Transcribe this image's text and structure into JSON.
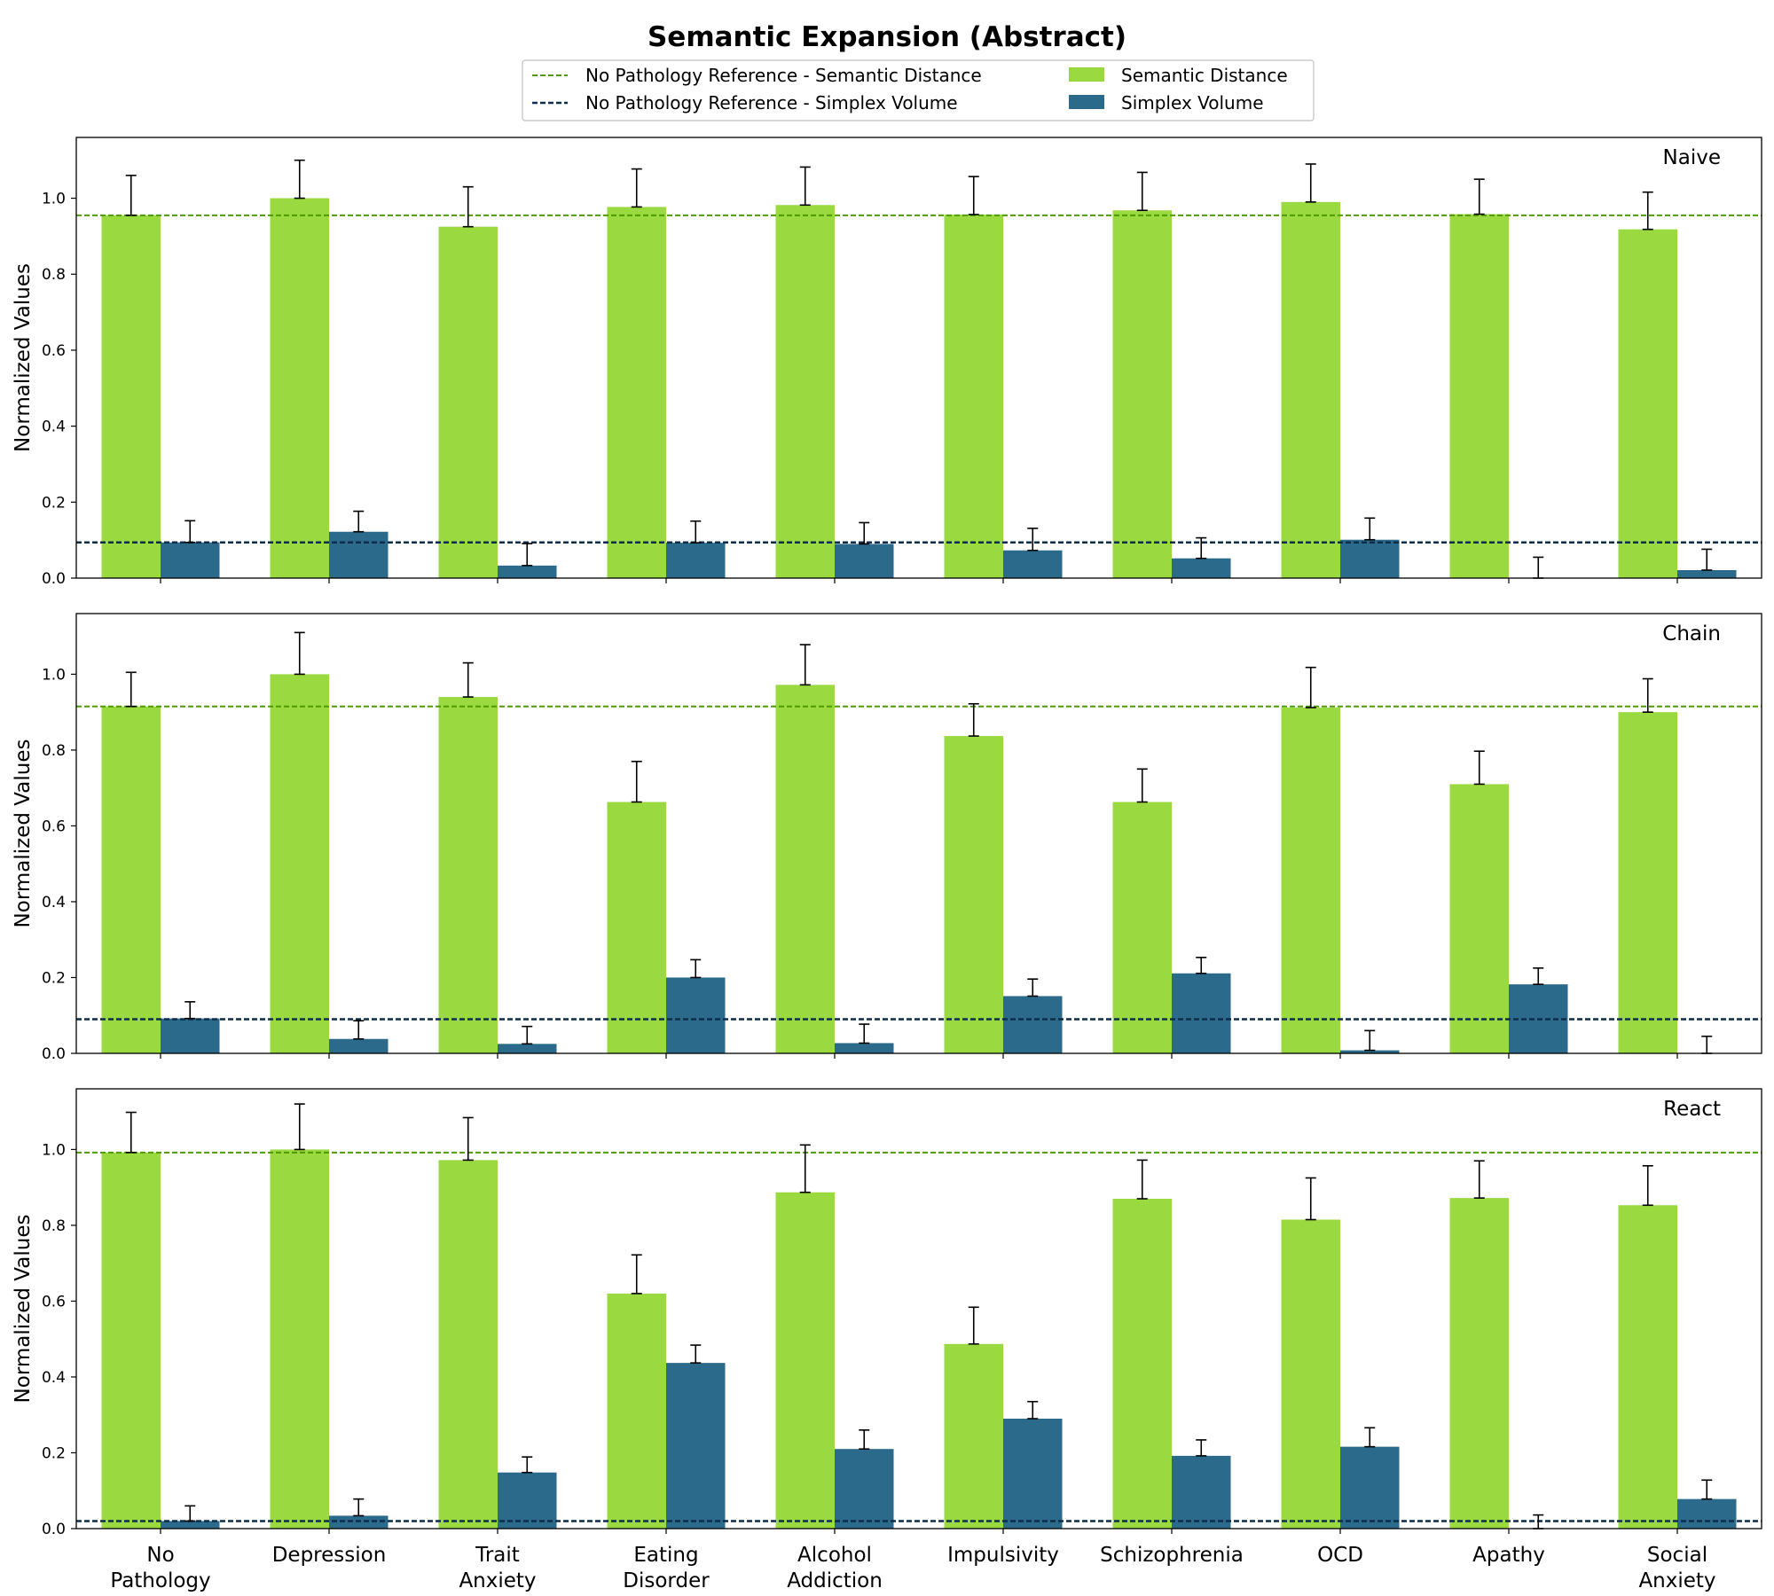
{
  "chart_data": {
    "type": "bar",
    "title": "Semantic Expansion (Abstract)",
    "ylabel": "Normalized Values",
    "ylim": [
      0,
      1.16
    ],
    "yticks": [
      "0.0",
      "0.2",
      "0.4",
      "0.6",
      "0.8",
      "1.0"
    ],
    "categories": [
      "No\nPathology",
      "Depression",
      "Trait\nAnxiety",
      "Eating\nDisorder",
      "Alcohol\nAddiction",
      "Impulsivity",
      "Schizophrenia",
      "OCD",
      "Apathy",
      "Social\nAnxiety"
    ],
    "legend": {
      "placement": "top-center",
      "items": [
        {
          "label": "No Pathology Reference - Semantic Distance",
          "kind": "dashed-line",
          "color": "#4f9a00"
        },
        {
          "label": "No Pathology Reference - Simplex Volume",
          "kind": "dashed-line",
          "color": "#0d2d4a"
        },
        {
          "label": "Semantic Distance",
          "kind": "bar",
          "color": "#9ad940"
        },
        {
          "label": "Simplex Volume",
          "kind": "bar",
          "color": "#2b6a8a"
        }
      ]
    },
    "colors": {
      "semantic": "#9ad940",
      "simplex": "#2b6a8a",
      "ref_semantic": "#4f9a00",
      "ref_simplex": "#0d2d4a"
    },
    "panels": [
      {
        "name": "Naive",
        "series": [
          {
            "name": "Semantic Distance",
            "values": [
              0.955,
              1.0,
              0.925,
              0.977,
              0.982,
              0.957,
              0.968,
              0.99,
              0.958,
              0.918
            ],
            "errors": [
              0.105,
              0.1,
              0.105,
              0.1,
              0.1,
              0.1,
              0.1,
              0.1,
              0.092,
              0.098
            ]
          },
          {
            "name": "Simplex Volume",
            "values": [
              0.094,
              0.122,
              0.033,
              0.093,
              0.09,
              0.073,
              0.052,
              0.101,
              0.0,
              0.021
            ],
            "errors": [
              0.057,
              0.054,
              0.058,
              0.057,
              0.056,
              0.058,
              0.054,
              0.057,
              0.055,
              0.055
            ]
          }
        ],
        "ref_semantic": 0.955,
        "ref_simplex": 0.094
      },
      {
        "name": "Chain",
        "series": [
          {
            "name": "Semantic Distance",
            "values": [
              0.915,
              1.0,
              0.94,
              0.663,
              0.972,
              0.837,
              0.663,
              0.912,
              0.71,
              0.9
            ],
            "errors": [
              0.09,
              0.11,
              0.09,
              0.107,
              0.106,
              0.085,
              0.087,
              0.106,
              0.087,
              0.088
            ]
          },
          {
            "name": "Simplex Volume",
            "values": [
              0.092,
              0.038,
              0.025,
              0.2,
              0.027,
              0.151,
              0.211,
              0.008,
              0.182,
              0.0
            ],
            "errors": [
              0.044,
              0.048,
              0.046,
              0.047,
              0.05,
              0.045,
              0.042,
              0.052,
              0.043,
              0.045
            ]
          }
        ],
        "ref_semantic": 0.915,
        "ref_simplex": 0.09
      },
      {
        "name": "React",
        "series": [
          {
            "name": "Semantic Distance",
            "values": [
              0.992,
              1.0,
              0.972,
              0.62,
              0.887,
              0.487,
              0.87,
              0.815,
              0.872,
              0.853
            ],
            "errors": [
              0.106,
              0.12,
              0.112,
              0.102,
              0.125,
              0.097,
              0.102,
              0.11,
              0.098,
              0.104
            ]
          },
          {
            "name": "Simplex Volume",
            "values": [
              0.02,
              0.034,
              0.148,
              0.437,
              0.21,
              0.29,
              0.192,
              0.216,
              0.0,
              0.078
            ],
            "errors": [
              0.04,
              0.044,
              0.041,
              0.047,
              0.05,
              0.045,
              0.042,
              0.05,
              0.036,
              0.05
            ]
          }
        ],
        "ref_semantic": 0.992,
        "ref_simplex": 0.02
      }
    ]
  }
}
